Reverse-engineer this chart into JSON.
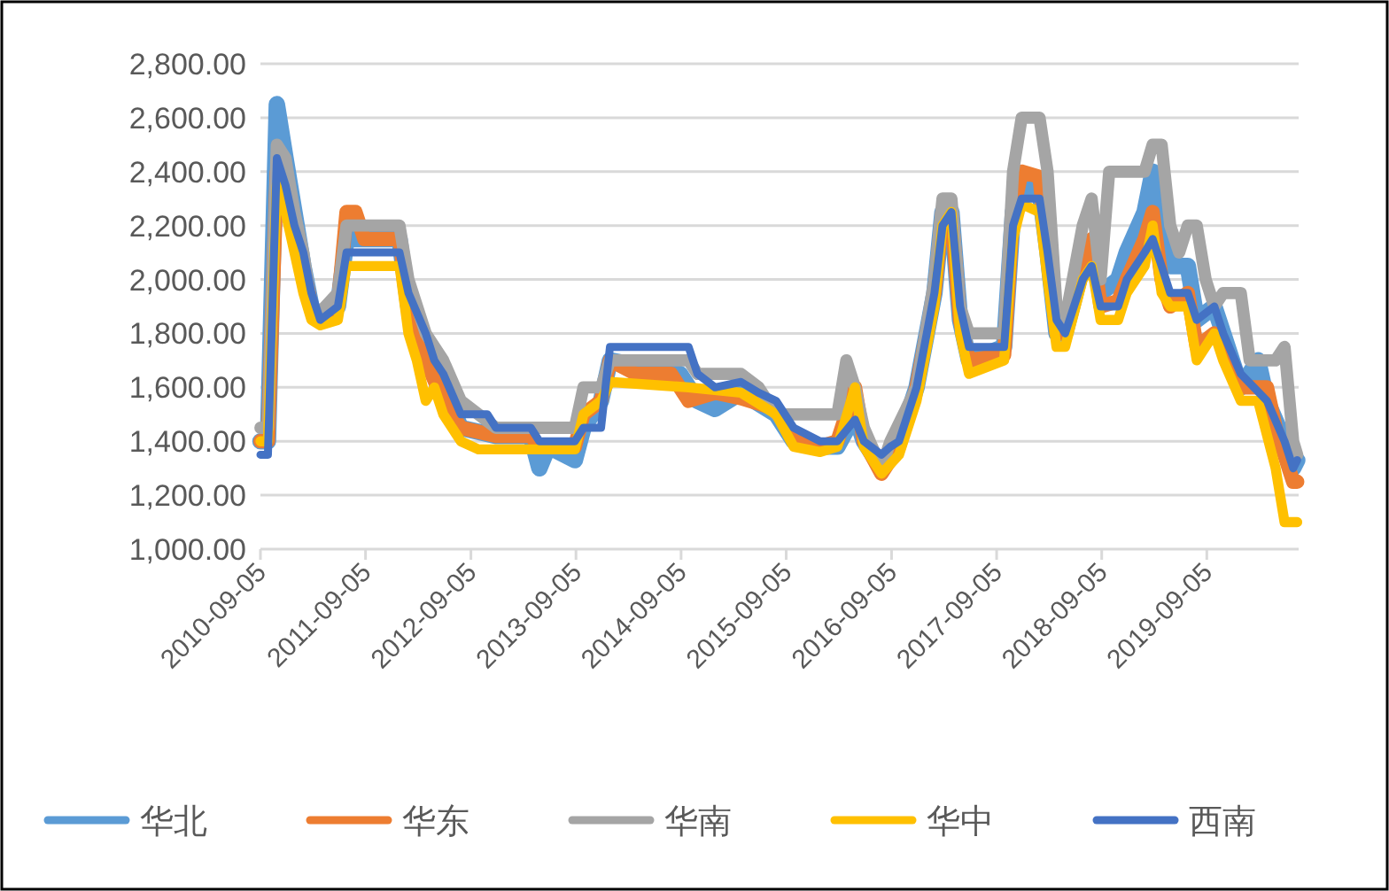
{
  "chart_data": {
    "type": "line",
    "xlim": [
      "2010-09-05",
      "2020-07-20"
    ],
    "xticks": [
      "2010-09-05",
      "2011-09-05",
      "2012-09-05",
      "2013-09-05",
      "2014-09-05",
      "2015-09-05",
      "2016-09-05",
      "2017-09-05",
      "2018-09-05",
      "2019-09-05"
    ],
    "ylim": [
      1000,
      2800
    ],
    "yticks": [
      {
        "value": 1000,
        "label": "1,000.00"
      },
      {
        "value": 1200,
        "label": "1,200.00"
      },
      {
        "value": 1400,
        "label": "1,400.00"
      },
      {
        "value": 1600,
        "label": "1,600.00"
      },
      {
        "value": 1800,
        "label": "1,800.00"
      },
      {
        "value": 2000,
        "label": "2,000.00"
      },
      {
        "value": 2200,
        "label": "2,200.00"
      },
      {
        "value": 2400,
        "label": "2,400.00"
      },
      {
        "value": 2600,
        "label": "2,600.00"
      },
      {
        "value": 2800,
        "label": "2,800.00"
      }
    ],
    "grid": "y",
    "legend": "bottom",
    "marker": "none",
    "line_style": "solid",
    "series": [
      {
        "name": "华北",
        "color": "#5b9bd5",
        "x": [
          "2010-09-05",
          "2010-10",
          "2010-11",
          "2010-12",
          "2011-01",
          "2011-02",
          "2011-03",
          "2011-04",
          "2011-06",
          "2011-07",
          "2011-10",
          "2012-01",
          "2012-02",
          "2012-04",
          "2012-06",
          "2012-08",
          "2012-12",
          "2013-04",
          "2013-05",
          "2013-06",
          "2013-09",
          "2013-10",
          "2013-12",
          "2014-01",
          "2014-09",
          "2014-11",
          "2015-01",
          "2015-04",
          "2015-08",
          "2015-10",
          "2016-01",
          "2016-03",
          "2016-05",
          "2016-06",
          "2016-08",
          "2016-10",
          "2016-12",
          "2017-02",
          "2017-03",
          "2017-04",
          "2017-05",
          "2017-06",
          "2017-10",
          "2017-11",
          "2017-12",
          "2018-02",
          "2018-03",
          "2018-04",
          "2018-05",
          "2018-07",
          "2018-08",
          "2018-09",
          "2018-11",
          "2018-12",
          "2019-02",
          "2019-03",
          "2019-04",
          "2019-05",
          "2019-07",
          "2019-08",
          "2019-10",
          "2019-11",
          "2020-01",
          "2020-03",
          "2020-04",
          "2020-06",
          "2020-07",
          "2020-07-15"
        ],
        "values": [
          1400,
          1400,
          2650,
          2450,
          2250,
          2050,
          1900,
          1850,
          1900,
          2150,
          2150,
          2150,
          1900,
          1750,
          1600,
          1450,
          1420,
          1420,
          1300,
          1380,
          1330,
          1450,
          1550,
          1700,
          1650,
          1550,
          1520,
          1580,
          1500,
          1400,
          1380,
          1380,
          1500,
          1400,
          1300,
          1400,
          1600,
          1950,
          2250,
          2250,
          1850,
          1700,
          1750,
          2250,
          2350,
          2330,
          2100,
          1800,
          1800,
          2050,
          2100,
          1950,
          2000,
          2100,
          2250,
          2400,
          2150,
          2050,
          2050,
          1850,
          1900,
          1800,
          1600,
          1700,
          1550,
          1400,
          1300,
          1330
        ]
      },
      {
        "name": "华东",
        "color": "#ed7d31",
        "x": [
          "2010-09-05",
          "2010-10",
          "2010-11",
          "2010-12",
          "2011-01",
          "2011-02",
          "2011-03",
          "2011-04",
          "2011-06",
          "2011-07",
          "2011-08",
          "2011-09",
          "2012-01",
          "2012-02",
          "2012-04",
          "2012-06",
          "2012-08",
          "2012-12",
          "2013-04",
          "2013-05",
          "2013-09",
          "2013-10",
          "2013-12",
          "2014-01",
          "2014-04",
          "2014-08",
          "2014-10",
          "2015-01",
          "2015-04",
          "2015-08",
          "2015-10",
          "2016-01",
          "2016-03",
          "2016-05",
          "2016-06",
          "2016-08",
          "2016-10",
          "2016-12",
          "2017-02",
          "2017-03",
          "2017-04",
          "2017-05",
          "2017-06",
          "2017-10",
          "2017-11",
          "2017-12",
          "2018-02",
          "2018-03",
          "2018-04",
          "2018-05",
          "2018-07",
          "2018-08",
          "2018-09",
          "2018-11",
          "2018-12",
          "2019-02",
          "2019-03",
          "2019-04",
          "2019-05",
          "2019-07",
          "2019-08",
          "2019-10",
          "2019-11",
          "2020-01",
          "2020-04",
          "2020-05",
          "2020-07",
          "2020-07-15"
        ],
        "values": [
          1400,
          1400,
          2400,
          2300,
          2200,
          2050,
          1900,
          1850,
          1900,
          2250,
          2250,
          2150,
          2150,
          1900,
          1700,
          1550,
          1450,
          1420,
          1420,
          1380,
          1380,
          1500,
          1550,
          1700,
          1650,
          1650,
          1550,
          1580,
          1560,
          1520,
          1400,
          1380,
          1400,
          1600,
          1400,
          1280,
          1380,
          1600,
          1950,
          2250,
          2250,
          1850,
          1700,
          1720,
          2250,
          2400,
          2380,
          2100,
          1800,
          1800,
          2050,
          2150,
          1900,
          1920,
          2000,
          2150,
          2250,
          2000,
          1900,
          1950,
          1750,
          1800,
          1750,
          1600,
          1600,
          1450,
          1250,
          1250
        ]
      },
      {
        "name": "华南",
        "color": "#a5a5a5",
        "x": [
          "2010-09-05",
          "2010-10",
          "2010-11",
          "2010-12",
          "2011-01",
          "2011-02",
          "2011-03",
          "2011-04",
          "2011-06",
          "2011-07",
          "2011-10",
          "2012-01",
          "2012-02",
          "2012-04",
          "2012-06",
          "2012-08",
          "2012-12",
          "2013-09",
          "2013-10",
          "2013-12",
          "2014-01",
          "2014-10",
          "2014-11",
          "2015-04",
          "2015-06",
          "2015-08",
          "2016-03",
          "2016-04",
          "2016-05",
          "2016-06",
          "2016-08",
          "2016-09",
          "2016-12",
          "2017-02",
          "2017-03",
          "2017-04",
          "2017-05",
          "2017-06",
          "2017-10",
          "2017-11",
          "2017-12",
          "2018-02",
          "2018-03",
          "2018-04",
          "2018-05",
          "2018-07",
          "2018-08",
          "2018-09",
          "2018-10",
          "2019-02",
          "2019-03",
          "2019-04",
          "2019-05",
          "2019-06",
          "2019-07",
          "2019-08",
          "2019-09",
          "2019-10",
          "2019-11",
          "2020-01",
          "2020-02",
          "2020-05",
          "2020-06",
          "2020-07",
          "2020-07-15"
        ],
        "values": [
          1450,
          1450,
          2500,
          2450,
          2250,
          2100,
          1900,
          1880,
          1950,
          2200,
          2200,
          2200,
          2000,
          1800,
          1700,
          1550,
          1450,
          1450,
          1600,
          1600,
          1700,
          1700,
          1650,
          1650,
          1600,
          1500,
          1500,
          1700,
          1600,
          1450,
          1300,
          1400,
          1600,
          2000,
          2300,
          2300,
          1900,
          1800,
          1800,
          2400,
          2600,
          2600,
          2400,
          1900,
          1850,
          2200,
          2300,
          2000,
          2400,
          2400,
          2500,
          2500,
          2200,
          2100,
          2200,
          2200,
          2000,
          1900,
          1950,
          1950,
          1700,
          1700,
          1750,
          1400,
          1350
        ]
      },
      {
        "name": "华中",
        "color": "#ffc000",
        "x": [
          "2010-09-05",
          "2010-10",
          "2010-11",
          "2010-12",
          "2011-01",
          "2011-02",
          "2011-03",
          "2011-04",
          "2011-06",
          "2011-07",
          "2011-10",
          "2012-01",
          "2012-02",
          "2012-03",
          "2012-04",
          "2012-05",
          "2012-06",
          "2012-08",
          "2012-10",
          "2013-09",
          "2013-10",
          "2013-12",
          "2014-01",
          "2014-10",
          "2015-04",
          "2015-08",
          "2015-10",
          "2016-01",
          "2016-03",
          "2016-05",
          "2016-06",
          "2016-08",
          "2016-10",
          "2016-12",
          "2017-02",
          "2017-03",
          "2017-04",
          "2017-05",
          "2017-06",
          "2017-10",
          "2017-11",
          "2017-12",
          "2018-02",
          "2018-03",
          "2018-04",
          "2018-05",
          "2018-07",
          "2018-08",
          "2018-09",
          "2018-11",
          "2018-12",
          "2019-02",
          "2019-03",
          "2019-04",
          "2019-05",
          "2019-07",
          "2019-08",
          "2019-10",
          "2019-11",
          "2020-01",
          "2020-03",
          "2020-05",
          "2020-06",
          "2020-07-15"
        ],
        "values": [
          1400,
          1400,
          2350,
          2250,
          2100,
          1950,
          1850,
          1830,
          1850,
          2050,
          2050,
          2050,
          1800,
          1700,
          1550,
          1600,
          1500,
          1400,
          1370,
          1370,
          1500,
          1550,
          1620,
          1600,
          1580,
          1500,
          1380,
          1360,
          1380,
          1600,
          1380,
          1280,
          1350,
          1550,
          1900,
          2200,
          2250,
          1800,
          1650,
          1700,
          2150,
          2280,
          2250,
          2000,
          1750,
          1750,
          2000,
          2050,
          1850,
          1850,
          1950,
          2050,
          2200,
          1950,
          1900,
          1900,
          1700,
          1800,
          1700,
          1550,
          1550,
          1300,
          1100,
          1100
        ]
      },
      {
        "name": "西南",
        "color": "#4472c4",
        "x": [
          "2010-09-05",
          "2010-10",
          "2010-11",
          "2010-12",
          "2011-01",
          "2011-02",
          "2011-03",
          "2011-04",
          "2011-06",
          "2011-07",
          "2011-10",
          "2012-01",
          "2012-02",
          "2012-04",
          "2012-05",
          "2012-06",
          "2012-08",
          "2012-11",
          "2012-12",
          "2013-04",
          "2013-05",
          "2013-09",
          "2013-10",
          "2013-12",
          "2014-01",
          "2014-10",
          "2014-11",
          "2015-01",
          "2015-04",
          "2015-06",
          "2015-08",
          "2015-10",
          "2016-01",
          "2016-03",
          "2016-05",
          "2016-06",
          "2016-08",
          "2016-09",
          "2016-10",
          "2016-12",
          "2017-02",
          "2017-03",
          "2017-04",
          "2017-05",
          "2017-06",
          "2017-10",
          "2017-11",
          "2017-12",
          "2018-02",
          "2018-03",
          "2018-04",
          "2018-05",
          "2018-07",
          "2018-08",
          "2018-09",
          "2018-11",
          "2018-12",
          "2019-02",
          "2019-03",
          "2019-04",
          "2019-05",
          "2019-07",
          "2019-08",
          "2019-10",
          "2019-11",
          "2020-01",
          "2020-04",
          "2020-06",
          "2020-07",
          "2020-07-15"
        ],
        "values": [
          1350,
          1350,
          2450,
          2350,
          2200,
          2100,
          1950,
          1850,
          1900,
          2100,
          2100,
          2100,
          1950,
          1800,
          1700,
          1650,
          1500,
          1500,
          1450,
          1450,
          1400,
          1400,
          1450,
          1450,
          1750,
          1750,
          1650,
          1600,
          1620,
          1580,
          1550,
          1450,
          1400,
          1400,
          1480,
          1400,
          1350,
          1380,
          1400,
          1600,
          1950,
          2200,
          2250,
          1900,
          1750,
          1750,
          2200,
          2300,
          2300,
          2100,
          1850,
          1800,
          2000,
          2050,
          1900,
          1900,
          2000,
          2100,
          2150,
          2050,
          1950,
          1950,
          1850,
          1900,
          1800,
          1650,
          1550,
          1400,
          1300,
          1330
        ]
      }
    ]
  }
}
